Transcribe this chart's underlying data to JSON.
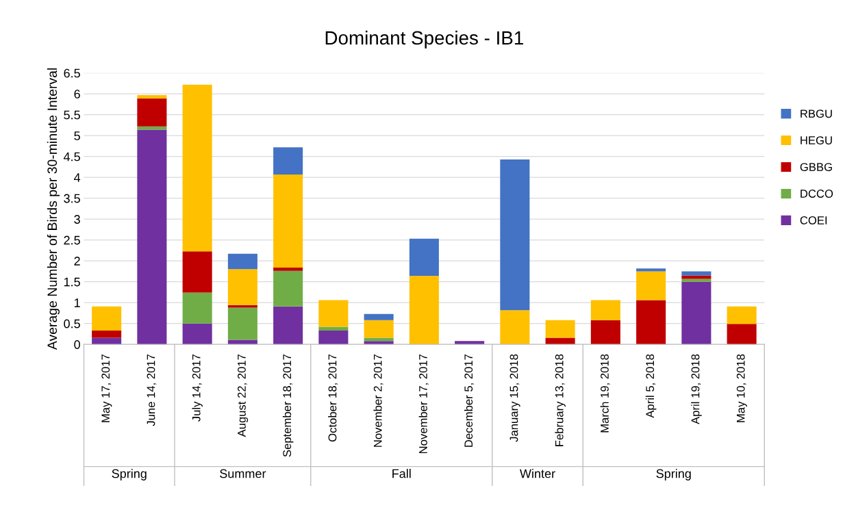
{
  "chart_data": {
    "type": "bar",
    "stacked": true,
    "title": "Dominant Species - IB1",
    "ylabel": "Average Number of Birds per 30-minute Interval",
    "categories": [
      "May 17, 2017",
      "June 14, 2017",
      "July 14, 2017",
      "August 22, 2017",
      "September 18, 2017",
      "October 18, 2017",
      "November 2, 2017",
      "November 17, 2017",
      "December 5, 2017",
      "January 15, 2018",
      "February 13, 2018",
      "March 19, 2018",
      "April 5, 2018",
      "April 19, 2018",
      "May 10, 2018"
    ],
    "series": [
      {
        "name": "COEI",
        "color": "#7030a0",
        "values": [
          0.16,
          5.14,
          0.5,
          0.11,
          0.91,
          0.33,
          0.08,
          0,
          0.08,
          0,
          0,
          0,
          0,
          1.5,
          0
        ]
      },
      {
        "name": "DCCO",
        "color": "#70ad47",
        "values": [
          0,
          0.08,
          0.74,
          0.77,
          0.85,
          0.09,
          0.08,
          0,
          0,
          0,
          0,
          0,
          0,
          0.07,
          0
        ]
      },
      {
        "name": "GBBG",
        "color": "#c00000",
        "values": [
          0.17,
          0.67,
          0.99,
          0.06,
          0.08,
          0,
          0,
          0,
          0,
          0,
          0.16,
          0.58,
          1.06,
          0.08,
          0.49
        ]
      },
      {
        "name": "HEGU",
        "color": "#ffc000",
        "values": [
          0.58,
          0.08,
          3.99,
          0.86,
          2.23,
          0.64,
          0.42,
          1.64,
          0,
          0.82,
          0.42,
          0.48,
          0.69,
          0,
          0.42
        ]
      },
      {
        "name": "RBGU",
        "color": "#4472c4",
        "values": [
          0,
          0,
          0,
          0.37,
          0.65,
          0,
          0.15,
          0.89,
          0,
          3.61,
          0,
          0,
          0.07,
          0.1,
          0
        ]
      }
    ],
    "ylim": [
      0,
      6.5
    ],
    "yticks": [
      0,
      0.5,
      1,
      1.5,
      2,
      2.5,
      3,
      3.5,
      4,
      4.5,
      5,
      5.5,
      6,
      6.5
    ],
    "grid": "y",
    "legend": "right",
    "annotations": [
      "Spring",
      "Summer",
      "Fall",
      "Winter",
      "Spring"
    ]
  }
}
